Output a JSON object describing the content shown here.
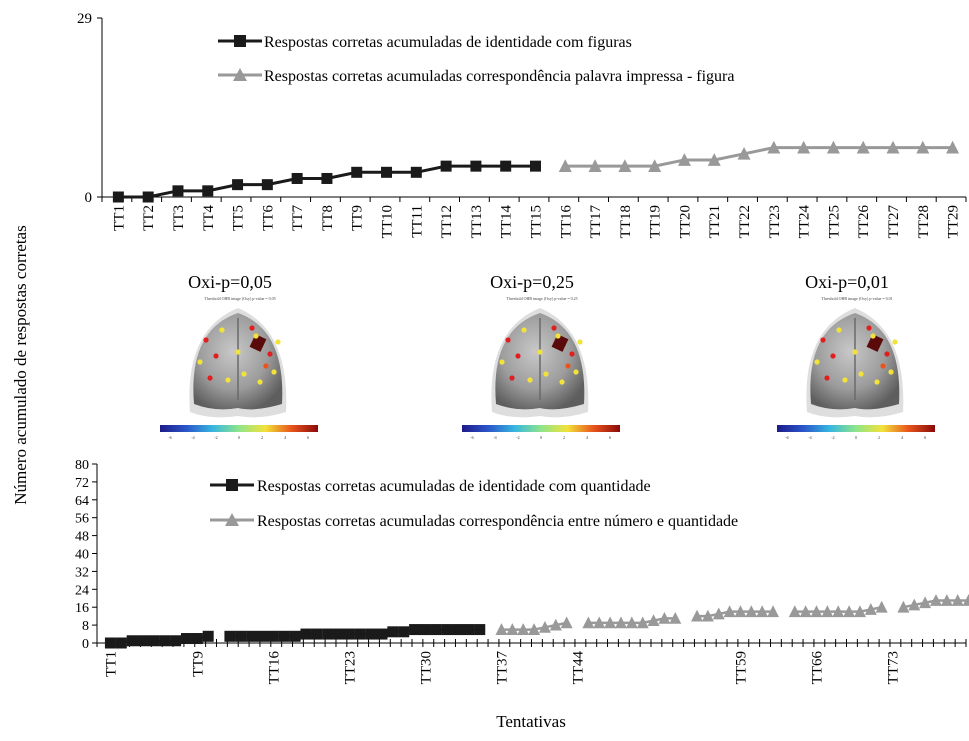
{
  "figure": {
    "ylabel": "Número acumulado de respostas corretas",
    "xlabel": "Tentativas"
  },
  "brains": [
    {
      "label": "Oxi-p=0,05",
      "caption": "Threshold OHB image (Oxy)   p-value = 0.05"
    },
    {
      "label": "Oxi-p=0,25",
      "caption": "Threshold OHB image (Oxy)   p-value = 0.25"
    },
    {
      "label": "Oxi-p=0,01",
      "caption": "Threshold OHB image (Oxy)   p-value = 0.01"
    }
  ],
  "colorbar": {
    "ticks": [
      "-6",
      "-4",
      "-2",
      "0",
      "2",
      "4",
      "6"
    ],
    "colors": [
      "#1e1b8a",
      "#2a56c9",
      "#37b6e0",
      "#8ee58a",
      "#f2e23a",
      "#e8541c",
      "#8a0a0a"
    ]
  },
  "chart_data": [
    {
      "type": "line",
      "ylim": [
        0,
        29
      ],
      "yticks": [
        0,
        29
      ],
      "categories": [
        "TT1",
        "TT2",
        "TT3",
        "TT4",
        "TT5",
        "TT6",
        "TT7",
        "TT8",
        "TT9",
        "TT10",
        "TT11",
        "TT12",
        "TT13",
        "TT14",
        "TT15",
        "TT16",
        "TT17",
        "TT18",
        "TT19",
        "TT20",
        "TT21",
        "TT22",
        "TT23",
        "TT24",
        "TT25",
        "TT26",
        "TT27",
        "TT28",
        "TT29"
      ],
      "series": [
        {
          "name": "Respostas corretas acumuladas de identidade com figuras",
          "color": "#1a1a1a",
          "marker": "square",
          "x": [
            "TT1",
            "TT2",
            "TT3",
            "TT4",
            "TT5",
            "TT6",
            "TT7",
            "TT8",
            "TT9",
            "TT10",
            "TT11",
            "TT12",
            "TT13",
            "TT14",
            "TT15"
          ],
          "values": [
            0,
            0,
            1,
            1,
            2,
            2,
            3,
            3,
            4,
            4,
            4,
            5,
            5,
            5,
            5
          ]
        },
        {
          "name": "Respostas corretas acumuladas correspondência palavra impressa - figura",
          "color": "#999999",
          "marker": "triangle",
          "x": [
            "TT16",
            "TT17",
            "TT18",
            "TT19",
            "TT20",
            "TT21",
            "TT22",
            "TT23",
            "TT24",
            "TT25",
            "TT26",
            "TT27",
            "TT28",
            "TT29"
          ],
          "values": [
            5,
            5,
            5,
            5,
            6,
            6,
            7,
            8,
            8,
            8,
            8,
            8,
            8,
            8
          ]
        }
      ],
      "legend": "top-left"
    },
    {
      "type": "line",
      "ylim": [
        0,
        80
      ],
      "yticks": [
        0,
        8,
        16,
        24,
        32,
        40,
        48,
        56,
        64,
        72,
        80
      ],
      "x_count": 80,
      "x_tick_labels": [
        {
          "x": 1,
          "label": "TT1"
        },
        {
          "x": 9,
          "label": "TT9"
        },
        {
          "x": 16,
          "label": "TT16"
        },
        {
          "x": 23,
          "label": "TT23"
        },
        {
          "x": 30,
          "label": "TT30"
        },
        {
          "x": 37,
          "label": "TT37"
        },
        {
          "x": 44,
          "label": "TT44"
        },
        {
          "x": 59,
          "label": "TT59"
        },
        {
          "x": 66,
          "label": "TT66"
        },
        {
          "x": 73,
          "label": "TT73"
        }
      ],
      "series": [
        {
          "name": "Respostas corretas acumuladas de identidade com quantidade",
          "color": "#1a1a1a",
          "marker": "square",
          "segments": [
            {
              "x": [
                1,
                2,
                3,
                4,
                5,
                6,
                7,
                8,
                9,
                10
              ],
              "values": [
                0,
                0,
                1,
                1,
                1,
                1,
                1,
                2,
                2,
                3
              ]
            },
            {
              "x": [
                12,
                13,
                14,
                15,
                16,
                17,
                18,
                19,
                20
              ],
              "values": [
                3,
                3,
                3,
                3,
                3,
                3,
                3,
                4,
                4
              ]
            },
            {
              "x": [
                21,
                22,
                23,
                24,
                25,
                26,
                27,
                28,
                29
              ],
              "values": [
                4,
                4,
                4,
                4,
                4,
                4,
                5,
                5,
                6
              ]
            },
            {
              "x": [
                30,
                31,
                32,
                33,
                34,
                35
              ],
              "values": [
                6,
                6,
                6,
                6,
                6,
                6
              ]
            }
          ]
        },
        {
          "name": "Respostas corretas acumuladas correspondência entre número e quantidade",
          "color": "#999999",
          "marker": "triangle",
          "segments": [
            {
              "x": [
                37,
                38,
                39,
                40,
                41,
                42,
                43
              ],
              "values": [
                6,
                6,
                6,
                6,
                7,
                8,
                9
              ]
            },
            {
              "x": [
                45,
                46,
                47,
                48,
                49,
                50,
                51,
                52,
                53
              ],
              "values": [
                9,
                9,
                9,
                9,
                9,
                9,
                10,
                11,
                11
              ]
            },
            {
              "x": [
                55,
                56,
                57,
                58,
                59,
                60,
                61,
                62
              ],
              "values": [
                12,
                12,
                13,
                14,
                14,
                14,
                14,
                14
              ]
            },
            {
              "x": [
                64,
                65,
                66,
                67,
                68,
                69,
                70,
                71,
                72
              ],
              "values": [
                14,
                14,
                14,
                14,
                14,
                14,
                14,
                15,
                16
              ]
            },
            {
              "x": [
                74,
                75,
                76,
                77,
                78,
                79,
                80,
                81,
                82
              ],
              "values": [
                16,
                17,
                18,
                19,
                19,
                19,
                19,
                20,
                21
              ]
            }
          ]
        }
      ],
      "legend": "top-left"
    }
  ]
}
